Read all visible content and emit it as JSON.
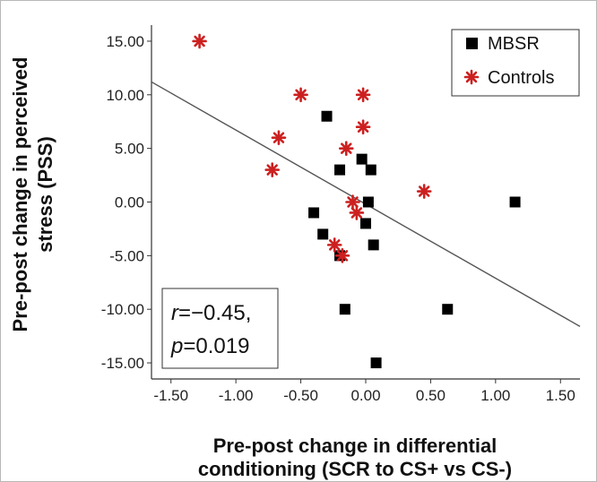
{
  "chart_data": {
    "type": "scatter",
    "xlabel_lines": [
      "Pre-post change in differential",
      "conditioning (SCR to CS+ vs CS-)"
    ],
    "ylabel_lines": [
      "Pre-post change in perceived",
      "stress (PSS)"
    ],
    "xlim": [
      -1.65,
      1.65
    ],
    "ylim": [
      -16.5,
      16.5
    ],
    "x_ticks": [
      "-1.50",
      "-1.00",
      "-0.50",
      "0.00",
      "0.50",
      "1.00",
      "1.50"
    ],
    "y_ticks": [
      "15.00",
      "10.00",
      "5.00",
      "0.00",
      "-5.00",
      "-10.00",
      "-15.00"
    ],
    "grid": false,
    "legend_position": "top-right",
    "series": [
      {
        "name": "MBSR",
        "marker": "square",
        "color": "#000000",
        "points": [
          [
            -0.3,
            8
          ],
          [
            -0.03,
            4
          ],
          [
            0.04,
            3
          ],
          [
            -0.2,
            3
          ],
          [
            0.02,
            0
          ],
          [
            1.15,
            0
          ],
          [
            -0.4,
            -1
          ],
          [
            0.0,
            -2
          ],
          [
            -0.33,
            -3
          ],
          [
            0.06,
            -4
          ],
          [
            -0.2,
            -5
          ],
          [
            -0.16,
            -10
          ],
          [
            0.63,
            -10
          ],
          [
            0.08,
            -15
          ]
        ]
      },
      {
        "name": "Controls",
        "marker": "star",
        "color": "#cc2020",
        "points": [
          [
            -1.28,
            15
          ],
          [
            -0.5,
            10
          ],
          [
            -0.02,
            10
          ],
          [
            -0.02,
            7
          ],
          [
            -0.67,
            6
          ],
          [
            -0.15,
            5
          ],
          [
            -0.72,
            3
          ],
          [
            0.45,
            1
          ],
          [
            -0.1,
            0
          ],
          [
            -0.07,
            -1
          ],
          [
            -0.24,
            -4
          ],
          [
            -0.18,
            -5
          ]
        ]
      }
    ],
    "fit_line": {
      "x0": -1.65,
      "y0": 11.2,
      "x1": 1.65,
      "y1": -11.6
    },
    "annotation": {
      "r_label": "r",
      "r_value": "=−0.45,",
      "p_label": "p",
      "p_value": "=0.019"
    }
  }
}
